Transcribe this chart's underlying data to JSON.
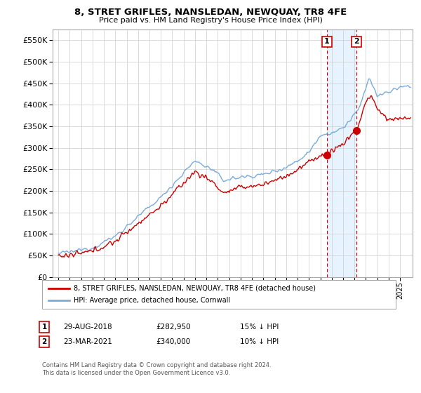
{
  "title": "8, STRET GRIFLES, NANSLEDAN, NEWQUAY, TR8 4FE",
  "subtitle": "Price paid vs. HM Land Registry's House Price Index (HPI)",
  "ylim": [
    0,
    575000
  ],
  "yticks": [
    0,
    50000,
    100000,
    150000,
    200000,
    250000,
    300000,
    350000,
    400000,
    450000,
    500000,
    550000
  ],
  "hpi_color": "#7aacdb",
  "price_color": "#cc0000",
  "background_color": "#ffffff",
  "grid_color": "#cccccc",
  "highlight_bg": "#ddeeff",
  "sale1_date": "29-AUG-2018",
  "sale1_price": 282950,
  "sale1_label": "15% ↓ HPI",
  "sale2_date": "23-MAR-2021",
  "sale2_price": 340000,
  "sale2_label": "10% ↓ HPI",
  "legend_label1": "8, STRET GRIFLES, NANSLEDAN, NEWQUAY, TR8 4FE (detached house)",
  "legend_label2": "HPI: Average price, detached house, Cornwall",
  "footnote": "Contains HM Land Registry data © Crown copyright and database right 2024.\nThis data is licensed under the Open Government Licence v3.0."
}
